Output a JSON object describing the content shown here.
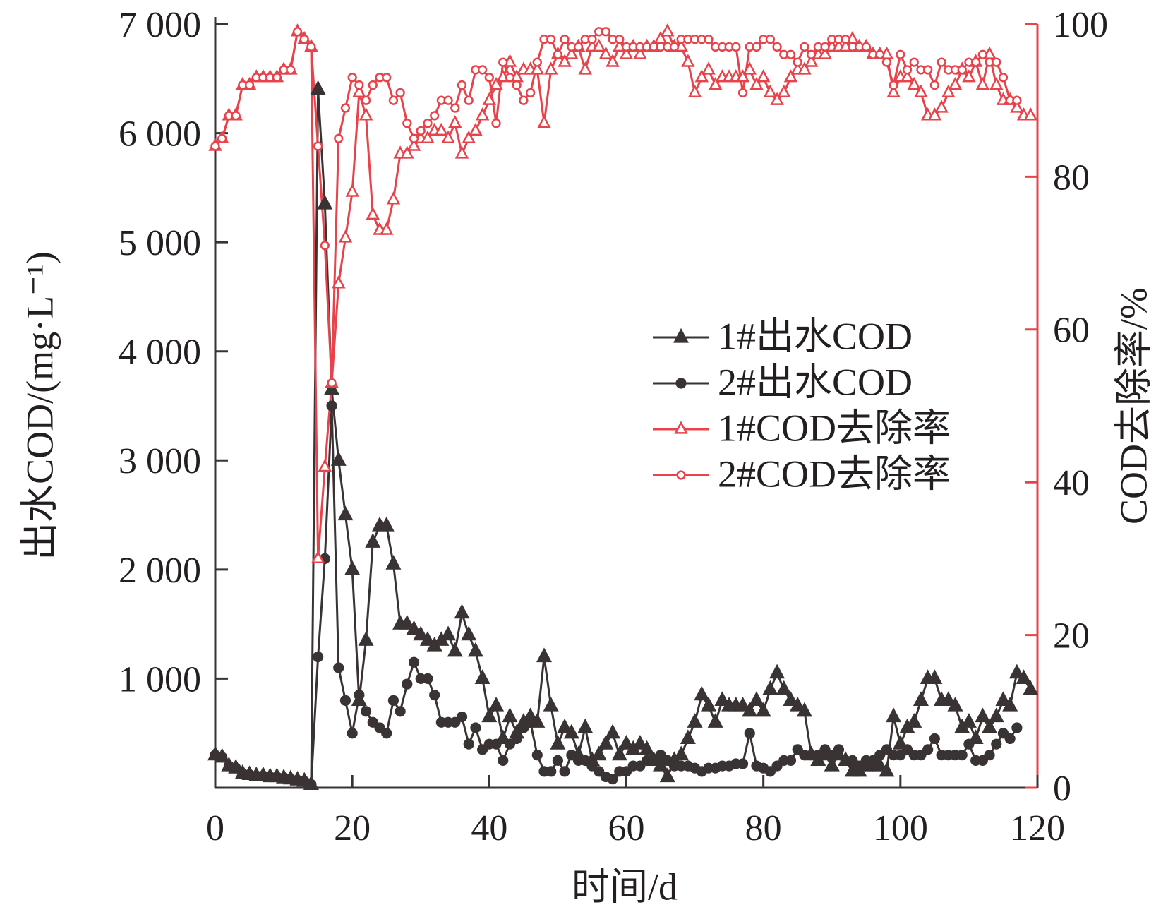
{
  "chart_data": {
    "type": "line",
    "xlabel": "时间/d",
    "ylabel": "出水COD/(mg·L⁻¹)",
    "y2label": "COD去除率/%",
    "xlim": [
      0,
      120
    ],
    "xticks": [
      0,
      20,
      40,
      60,
      80,
      100,
      120
    ],
    "ylim": [
      0,
      7000
    ],
    "yticks": [
      {
        "value": 1000,
        "label": "1 000"
      },
      {
        "value": 2000,
        "label": "2 000"
      },
      {
        "value": 3000,
        "label": "3 000"
      },
      {
        "value": 4000,
        "label": "4 000"
      },
      {
        "value": 5000,
        "label": "5 000"
      },
      {
        "value": 6000,
        "label": "6 000"
      },
      {
        "value": 7000,
        "label": "7 000"
      }
    ],
    "y2lim": [
      0,
      100
    ],
    "y2ticks": [
      0,
      20,
      40,
      60,
      80,
      100
    ],
    "y2color": "#e8424a",
    "grid": false,
    "legend": "center-right",
    "x": [
      0,
      1,
      2,
      3,
      4,
      5,
      6,
      7,
      8,
      9,
      10,
      11,
      12,
      13,
      14,
      15,
      16,
      17,
      18,
      19,
      20,
      21,
      22,
      23,
      24,
      25,
      26,
      27,
      28,
      29,
      30,
      31,
      32,
      33,
      34,
      35,
      36,
      37,
      38,
      39,
      40,
      41,
      42,
      43,
      44,
      45,
      46,
      47,
      48,
      49,
      50,
      51,
      52,
      53,
      54,
      55,
      56,
      57,
      58,
      59,
      60,
      61,
      62,
      63,
      64,
      65,
      66,
      67,
      68,
      69,
      70,
      71,
      72,
      73,
      74,
      75,
      76,
      77,
      78,
      79,
      80,
      81,
      82,
      83,
      84,
      85,
      86,
      87,
      88,
      89,
      90,
      91,
      92,
      93,
      94,
      95,
      96,
      97,
      98,
      99,
      100,
      101,
      102,
      103,
      104,
      105,
      106,
      107,
      108,
      109,
      110,
      111,
      112,
      113,
      114,
      115,
      116,
      117,
      118,
      119
    ],
    "series": [
      {
        "name": "1#出水COD",
        "color": "#3a3333",
        "marker": "triangle",
        "filled": true,
        "axis": "y",
        "values": [
          300,
          280,
          200,
          180,
          130,
          120,
          110,
          110,
          100,
          100,
          90,
          80,
          70,
          60,
          30,
          6400,
          5350,
          3650,
          3000,
          2500,
          2000,
          800,
          1350,
          2250,
          2400,
          2400,
          2050,
          1500,
          1500,
          1450,
          1400,
          1350,
          1300,
          1350,
          1400,
          1250,
          1600,
          1400,
          1250,
          1000,
          650,
          750,
          450,
          650,
          500,
          600,
          650,
          600,
          1200,
          750,
          400,
          550,
          500,
          300,
          550,
          250,
          300,
          400,
          500,
          300,
          400,
          350,
          400,
          350,
          250,
          200,
          100,
          250,
          300,
          450,
          600,
          850,
          750,
          600,
          800,
          750,
          750,
          750,
          700,
          800,
          700,
          900,
          1050,
          900,
          800,
          750,
          700,
          300,
          250,
          300,
          200,
          300,
          250,
          150,
          150,
          200,
          200,
          200,
          150,
          650,
          400,
          550,
          600,
          800,
          1000,
          1000,
          800,
          800,
          750,
          550,
          600,
          450,
          650,
          550,
          650,
          800,
          750,
          1050,
          1000,
          900
        ]
      },
      {
        "name": "2#出水COD",
        "color": "#3a3333",
        "marker": "circle",
        "filled": true,
        "axis": "y",
        "values": [
          300,
          280,
          200,
          180,
          130,
          120,
          110,
          110,
          100,
          100,
          90,
          80,
          70,
          60,
          30,
          1200,
          2100,
          3500,
          1100,
          800,
          500,
          850,
          700,
          600,
          550,
          500,
          800,
          700,
          950,
          1150,
          1000,
          1000,
          850,
          600,
          600,
          600,
          650,
          400,
          550,
          350,
          400,
          400,
          250,
          400,
          450,
          550,
          600,
          300,
          150,
          150,
          250,
          150,
          300,
          250,
          250,
          200,
          150,
          100,
          80,
          150,
          150,
          200,
          200,
          250,
          250,
          300,
          250,
          200,
          200,
          200,
          180,
          150,
          180,
          180,
          200,
          200,
          220,
          220,
          500,
          200,
          180,
          150,
          200,
          250,
          250,
          350,
          300,
          300,
          300,
          350,
          300,
          350,
          250,
          250,
          200,
          250,
          250,
          300,
          350,
          300,
          300,
          350,
          300,
          300,
          350,
          450,
          300,
          300,
          300,
          300,
          400,
          250,
          250,
          300,
          400,
          500,
          450,
          550,
          null,
          null
        ]
      },
      {
        "name": "1#COD去除率",
        "color": "#e8424a",
        "marker": "triangle",
        "filled": false,
        "axis": "y2",
        "values": [
          84,
          85,
          88,
          88,
          92,
          92,
          93,
          93,
          93,
          93,
          94,
          94,
          99,
          98,
          97,
          30,
          42,
          53,
          66,
          72,
          78,
          91,
          88,
          75,
          73,
          73,
          77,
          83,
          83,
          84,
          85,
          85,
          86,
          86,
          85,
          87,
          83,
          85,
          86,
          88,
          90,
          92,
          93,
          95,
          93,
          94,
          94,
          94,
          87,
          94,
          96,
          95,
          96,
          97,
          94,
          97,
          97,
          96,
          95,
          97,
          96,
          97,
          96,
          97,
          97,
          98,
          99,
          97,
          97,
          95,
          91,
          93,
          94,
          92,
          93,
          93,
          93,
          93,
          94,
          92,
          93,
          91,
          90,
          91,
          93,
          94,
          94,
          95,
          96,
          96,
          97,
          97,
          97,
          98,
          97,
          97,
          96,
          96,
          96,
          91,
          93,
          93,
          92,
          91,
          88,
          88,
          89,
          91,
          92,
          94,
          93,
          95,
          92,
          96,
          92,
          90,
          90,
          89,
          88,
          88
        ]
      },
      {
        "name": "2#COD去除率",
        "color": "#e8424a",
        "marker": "circle",
        "filled": false,
        "axis": "y2",
        "values": [
          84,
          85,
          88,
          88,
          92,
          92,
          93,
          93,
          93,
          93,
          94,
          94,
          99,
          98,
          97,
          84,
          71,
          53,
          85,
          89,
          93,
          92,
          90,
          92,
          93,
          93,
          90,
          91,
          87,
          85,
          86,
          87,
          88,
          90,
          90,
          89,
          92,
          90,
          94,
          94,
          93,
          87,
          95,
          93,
          92,
          90,
          91,
          95,
          98,
          98,
          96,
          98,
          97,
          97,
          98,
          98,
          99,
          99,
          98,
          98,
          97,
          97,
          97,
          97,
          97,
          97,
          97,
          97,
          98,
          98,
          98,
          98,
          98,
          97,
          97,
          97,
          97,
          91,
          97,
          97,
          98,
          98,
          97,
          96,
          96,
          95,
          97,
          96,
          97,
          97,
          98,
          98,
          98,
          97,
          97,
          97,
          96,
          96,
          95,
          92,
          96,
          94,
          95,
          94,
          94,
          92,
          95,
          94,
          94,
          94,
          95,
          95,
          96,
          95,
          95,
          93,
          90,
          90,
          null,
          null
        ]
      }
    ]
  }
}
